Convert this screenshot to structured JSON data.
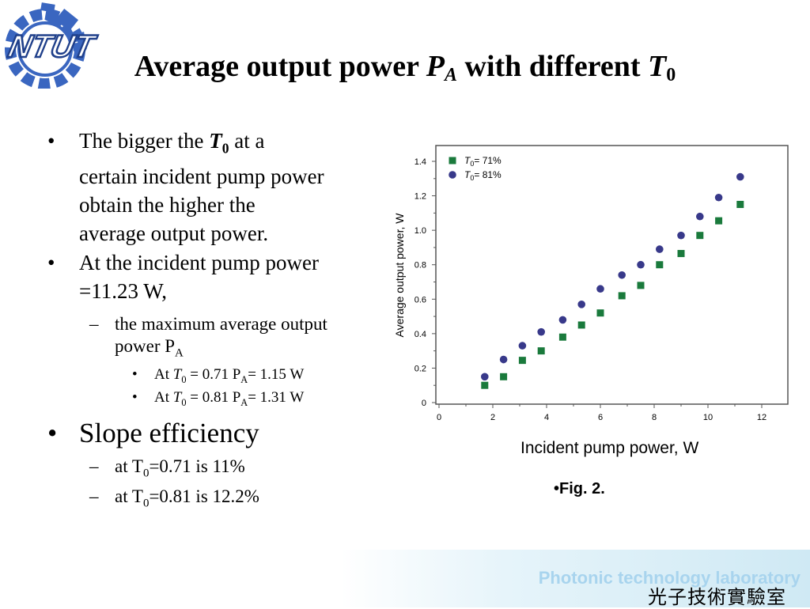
{
  "slide": {
    "title_main": "Average output power ",
    "title_P": "P",
    "title_P_sub": "A",
    "title_middle": " with different ",
    "title_T": "T",
    "title_T_sub": "0",
    "logo_text": "NTUT"
  },
  "bullets": {
    "b1_pre": "The bigger the ",
    "b1_T": "T",
    "b1_T_sub": "0",
    "b1_line1_post": " at a",
    "b1_line2": "certain incident pump power",
    "b1_line3": "obtain the higher the",
    "b1_line4": "average output power.",
    "b2_line1": "At the incident pump power",
    "b2_line2": "=11.23 W,",
    "b2a_line1": " the maximum average output",
    "b2a_line2": "power P",
    "b2a_line2_sub": "A",
    "b2a_i_pre": "At ",
    "b2a_i_T": "T",
    "b2a_i_sub": "0",
    "b2a_i_mid": " = 0.71 P",
    "b2a_i_P_sub": "A",
    "b2a_i_post": "= 1.15 W",
    "b2a_ii_pre": "At  ",
    "b2a_ii_T": "T",
    "b2a_ii_sub": "0",
    "b2a_ii_mid": " = 0.81  P",
    "b2a_ii_P_sub": "A",
    "b2a_ii_post": "= 1.31 W",
    "b3": "Slope efficiency",
    "b3a_pre": "at T",
    "b3a_sub": "0",
    "b3a_post": "=0.71 is 11%",
    "b3b_pre": "at T",
    "b3b_sub": "0",
    "b3b_post": "=0.81 is 12.2%"
  },
  "chart_data": {
    "type": "scatter",
    "xlabel": "Incident pump power, W",
    "ylabel": "Average output power, W",
    "xlim": [
      0,
      13
    ],
    "ylim": [
      0,
      1.5
    ],
    "xticks": [
      "0",
      "2",
      "4",
      "6",
      "8",
      "10",
      "12"
    ],
    "yticks": [
      "0",
      "0.2",
      "0.4",
      "0.6",
      "0.8",
      "1.0",
      "1.2",
      "1.4"
    ],
    "legend_position": "top-left",
    "series": [
      {
        "name": "T0=71%",
        "label_T": "T",
        "label_sub": "0",
        "label_rest": "= 71%",
        "marker": "square",
        "color": "#1a7a3c",
        "x": [
          1.7,
          2.4,
          3.1,
          3.8,
          4.6,
          5.3,
          6.0,
          6.8,
          7.5,
          8.2,
          9.0,
          9.7,
          10.4,
          11.2
        ],
        "y": [
          0.1,
          0.15,
          0.245,
          0.3,
          0.38,
          0.45,
          0.52,
          0.62,
          0.68,
          0.8,
          0.865,
          0.97,
          1.055,
          1.15
        ]
      },
      {
        "name": "T0=81%",
        "label_T": "T",
        "label_sub": "0",
        "label_rest": "= 81%",
        "marker": "circle",
        "color": "#38398a",
        "x": [
          1.7,
          2.4,
          3.1,
          3.8,
          4.6,
          5.3,
          6.0,
          6.8,
          7.5,
          8.2,
          9.0,
          9.7,
          10.4,
          11.2
        ],
        "y": [
          0.15,
          0.25,
          0.33,
          0.41,
          0.48,
          0.57,
          0.66,
          0.74,
          0.8,
          0.89,
          0.97,
          1.08,
          1.19,
          1.31
        ]
      }
    ]
  },
  "fig_label": "•Fig. 2.",
  "footer": {
    "english": "Photonic technology laboratory",
    "chinese": "光子技術實驗室"
  },
  "colors": {
    "logo_blue": "#2f5fb8",
    "footer_text": "#a8d4ee"
  }
}
